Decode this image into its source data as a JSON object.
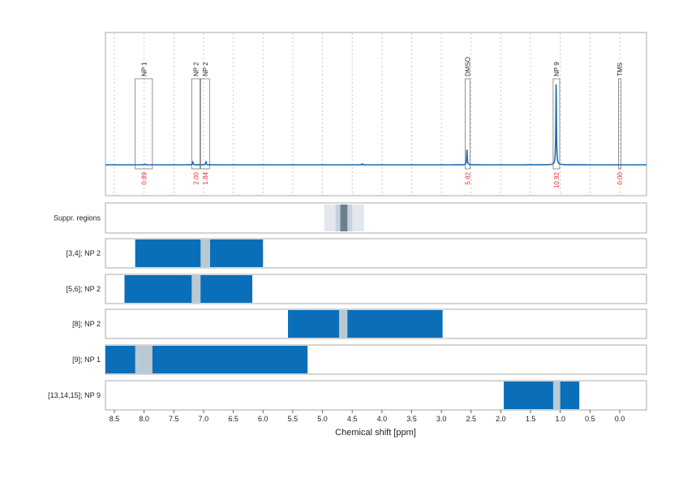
{
  "colors": {
    "spectrum": "#1f6fb0",
    "region": "#0a6fb8",
    "exclusion": "#b8c9d2",
    "suppr_outer": "#e2e8ee",
    "suppr_mid": "#c7d2db",
    "suppr_inner": "#6e7f8c",
    "integral_text": "#e03030"
  },
  "chart_data": {
    "type": "nmr_spectrum",
    "xlabel": "Chemical shift [ppm]",
    "xlim": [
      8.65,
      -0.45
    ],
    "x_reversed": true,
    "ticks": [
      "8.5",
      "8.0",
      "7.5",
      "7.0",
      "6.5",
      "6.0",
      "5.5",
      "5.0",
      "4.5",
      "4.0",
      "3.5",
      "3.0",
      "2.5",
      "2.0",
      "1.5",
      "1.0",
      "0.5",
      "0.0"
    ],
    "grid": true,
    "peaks": [
      {
        "label": "NP 1",
        "ppm": 7.99,
        "integral": "0.89",
        "box": [
          7.86,
          8.15
        ],
        "height": 0.01
      },
      {
        "label": "NP 2",
        "ppm": 7.18,
        "integral": "2.00",
        "box": [
          7.06,
          7.2
        ],
        "height": 0.03
      },
      {
        "label": "NP 2",
        "ppm": 6.96,
        "integral": "1.84",
        "box": [
          6.9,
          7.05
        ],
        "height": 0.04
      },
      {
        "label": "DMSO",
        "ppm": 2.57,
        "integral": "5.82",
        "box": [
          2.52,
          2.6
        ],
        "height": 0.19
      },
      {
        "label": "NP 9",
        "ppm": 1.07,
        "integral": "10.92",
        "box": [
          1.01,
          1.12
        ],
        "height": 1.0
      },
      {
        "label": "TMS",
        "ppm": 0.0,
        "integral": "0.00",
        "box": [
          -0.02,
          0.02
        ],
        "height": 0.0
      }
    ],
    "minor_peaks": [
      {
        "ppm": 4.33,
        "height": 0.012
      }
    ],
    "suppression": {
      "label": "Suppr. regions",
      "outer": [
        4.97,
        4.3
      ],
      "mid": [
        4.78,
        4.5
      ],
      "inner": [
        4.7,
        4.58
      ]
    },
    "rows": [
      {
        "label": "[3,4]; NP 2",
        "range": [
          8.15,
          6.0
        ],
        "exclusion": [
          7.05,
          6.89
        ]
      },
      {
        "label": "[5,6]; NP 2",
        "range": [
          8.33,
          6.18
        ],
        "exclusion": [
          7.2,
          7.05
        ]
      },
      {
        "label": "[8]; NP 2",
        "range": [
          5.58,
          2.98
        ],
        "exclusion": [
          4.72,
          4.58
        ]
      },
      {
        "label": "[9]; NP 1",
        "range": [
          8.65,
          5.25
        ],
        "exclusion": [
          8.15,
          7.86
        ]
      },
      {
        "label": "[13,14,15]; NP 9",
        "range": [
          1.95,
          0.68
        ],
        "exclusion": [
          1.12,
          1.0
        ]
      }
    ]
  }
}
